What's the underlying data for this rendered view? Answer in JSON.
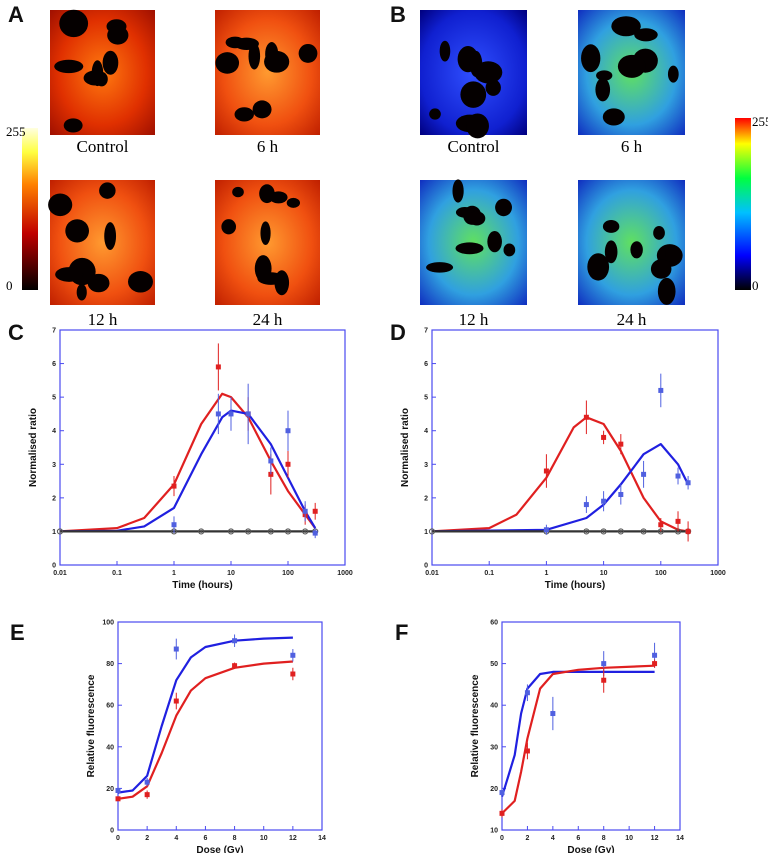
{
  "panels": [
    {
      "label": "A",
      "images": [
        "Control",
        "6 h",
        "12 h",
        "24 h"
      ],
      "colorbar": [
        "255",
        "0"
      ]
    },
    {
      "label": "B",
      "images": [
        "Control",
        "6 h",
        "12 h",
        "24 h"
      ],
      "colorbar": [
        "255",
        "0"
      ]
    }
  ],
  "chart_data": [
    {
      "type": "scatter",
      "label": "C",
      "xlabel": "Time (hours)",
      "ylabel": "Normalised ratio",
      "xscale": "log",
      "xlim": [
        0.01,
        1000
      ],
      "xticks": [
        0.01,
        0.1,
        1,
        10,
        100,
        1000
      ],
      "ylim": [
        0,
        7
      ],
      "yticks": [
        0,
        1,
        2,
        3,
        4,
        5,
        6,
        7
      ],
      "series": [
        {
          "mode": "line",
          "color": "#e02020",
          "x": [
            0.01,
            0.1,
            0.3,
            1,
            3,
            7,
            10,
            20,
            50,
            100,
            200,
            300
          ],
          "values": [
            1,
            1.1,
            1.4,
            2.4,
            4.2,
            5.1,
            5.0,
            4.4,
            3.1,
            2.2,
            1.5,
            1.1
          ]
        },
        {
          "mode": "line",
          "color": "#2020e0",
          "x": [
            0.01,
            0.1,
            0.3,
            1,
            3,
            7,
            10,
            20,
            50,
            100,
            200,
            300
          ],
          "values": [
            1,
            1.02,
            1.15,
            1.7,
            3.3,
            4.4,
            4.6,
            4.5,
            3.6,
            2.6,
            1.6,
            1.1
          ]
        },
        {
          "mode": "line",
          "color": "#333333",
          "x": [
            0.01,
            300
          ],
          "values": [
            1,
            1
          ]
        },
        {
          "mode": "markers",
          "marker": "circle",
          "color": "#555555",
          "x": [
            0.01,
            1,
            3,
            10,
            20,
            50,
            100,
            200,
            300
          ],
          "values": [
            1,
            1,
            1,
            1,
            1,
            1,
            1,
            1,
            1
          ],
          "errors": [
            0.05,
            0.05,
            0.05,
            0.05,
            0.05,
            0.05,
            0.05,
            0.05,
            0.05
          ]
        },
        {
          "mode": "markers",
          "marker": "square",
          "color": "#e02020",
          "x": [
            1,
            6,
            20,
            50,
            100,
            200,
            300
          ],
          "values": [
            2.35,
            5.9,
            4.5,
            2.7,
            3.0,
            1.5,
            1.6
          ],
          "errors": [
            0.3,
            0.7,
            0.5,
            0.6,
            0.4,
            0.3,
            0.25
          ]
        },
        {
          "mode": "markers",
          "marker": "square",
          "color": "#5060e0",
          "x": [
            1,
            6,
            10,
            20,
            50,
            100,
            200,
            300
          ],
          "values": [
            1.2,
            4.5,
            4.5,
            4.5,
            3.1,
            4.0,
            1.6,
            0.95
          ],
          "errors": [
            0.25,
            0.6,
            0.5,
            0.9,
            0.4,
            0.6,
            0.3,
            0.15
          ]
        }
      ]
    },
    {
      "type": "scatter",
      "label": "D",
      "xlabel": "Time (hours)",
      "ylabel": "Normalised ratio",
      "xscale": "log",
      "xlim": [
        0.01,
        1000
      ],
      "xticks": [
        0.01,
        0.1,
        1,
        10,
        100,
        1000
      ],
      "ylim": [
        0,
        7
      ],
      "yticks": [
        0,
        1,
        2,
        3,
        4,
        5,
        6,
        7
      ],
      "series": [
        {
          "mode": "line",
          "color": "#e02020",
          "x": [
            0.01,
            0.1,
            0.3,
            1,
            3,
            5,
            10,
            20,
            50,
            100,
            200,
            300
          ],
          "values": [
            1,
            1.1,
            1.5,
            2.6,
            4.1,
            4.4,
            4.2,
            3.4,
            2.0,
            1.3,
            1.05,
            1.0
          ]
        },
        {
          "mode": "line",
          "color": "#2020e0",
          "x": [
            0.01,
            1,
            5,
            10,
            20,
            50,
            100,
            200,
            300
          ],
          "values": [
            1,
            1.05,
            1.4,
            1.8,
            2.4,
            3.3,
            3.6,
            3.0,
            2.4
          ]
        },
        {
          "mode": "line",
          "color": "#333333",
          "x": [
            0.01,
            300
          ],
          "values": [
            1,
            1
          ]
        },
        {
          "mode": "markers",
          "marker": "circle",
          "color": "#555555",
          "x": [
            0.01,
            1,
            5,
            10,
            20,
            50,
            100,
            200,
            300
          ],
          "values": [
            1,
            1,
            1,
            1,
            1,
            1,
            1,
            1,
            1
          ],
          "errors": [
            0.05,
            0.05,
            0.05,
            0.05,
            0.05,
            0.05,
            0.05,
            0.05,
            0.05
          ]
        },
        {
          "mode": "markers",
          "marker": "square",
          "color": "#e02020",
          "x": [
            1,
            5,
            10,
            20,
            100,
            200,
            300
          ],
          "values": [
            2.8,
            4.4,
            3.8,
            3.6,
            1.2,
            1.3,
            1.0
          ],
          "errors": [
            0.5,
            0.5,
            0.2,
            0.3,
            0.2,
            0.3,
            0.3
          ]
        },
        {
          "mode": "markers",
          "marker": "square",
          "color": "#5060e0",
          "x": [
            1,
            5,
            10,
            20,
            50,
            100,
            200,
            300
          ],
          "values": [
            1.05,
            1.8,
            1.9,
            2.1,
            2.7,
            5.2,
            2.65,
            2.45
          ],
          "errors": [
            0.15,
            0.25,
            0.3,
            0.3,
            0.4,
            0.5,
            0.25,
            0.2
          ]
        }
      ]
    },
    {
      "type": "scatter",
      "label": "E",
      "xlabel": "Dose (Gy)",
      "ylabel": "Relative fluorescence",
      "xscale": "linear",
      "xlim": [
        0,
        14
      ],
      "xticks": [
        0,
        2,
        4,
        6,
        8,
        10,
        12,
        14
      ],
      "ylim": [
        0,
        100
      ],
      "yticks": [
        0,
        20,
        40,
        60,
        80,
        100
      ],
      "series": [
        {
          "mode": "line",
          "color": "#2020e0",
          "x": [
            0,
            1,
            2,
            3,
            4,
            5,
            6,
            8,
            10,
            12
          ],
          "values": [
            18,
            19,
            26,
            50,
            72,
            83,
            88,
            91,
            92,
            92.5
          ]
        },
        {
          "mode": "line",
          "color": "#e02020",
          "x": [
            0,
            1,
            2,
            3,
            4,
            5,
            6,
            8,
            10,
            12
          ],
          "values": [
            15,
            16,
            21,
            37,
            55,
            67,
            73,
            78,
            80,
            81
          ]
        },
        {
          "mode": "markers",
          "marker": "square",
          "color": "#5060e0",
          "x": [
            0,
            2,
            4,
            8,
            12
          ],
          "values": [
            19,
            23,
            87,
            91,
            84
          ],
          "errors": [
            1,
            2,
            5,
            3,
            3
          ]
        },
        {
          "mode": "markers",
          "marker": "square",
          "color": "#e02020",
          "x": [
            0,
            2,
            4,
            8,
            12
          ],
          "values": [
            15,
            17,
            62,
            79,
            75
          ],
          "errors": [
            1,
            2,
            4,
            1.5,
            3
          ]
        }
      ]
    },
    {
      "type": "scatter",
      "label": "F",
      "xlabel": "Dose (Gy)",
      "ylabel": "Relative fluorescence",
      "xscale": "linear",
      "xlim": [
        0,
        14
      ],
      "xticks": [
        0,
        2,
        4,
        6,
        8,
        10,
        12,
        14
      ],
      "ylim": [
        10,
        60
      ],
      "yticks": [
        10,
        20,
        30,
        40,
        50,
        60
      ],
      "series": [
        {
          "mode": "line",
          "color": "#2020e0",
          "x": [
            0,
            1,
            1.5,
            2,
            3,
            4,
            6,
            8,
            12
          ],
          "values": [
            18,
            28,
            38,
            44,
            47.5,
            48,
            48,
            48,
            48
          ]
        },
        {
          "mode": "line",
          "color": "#e02020",
          "x": [
            0,
            1,
            1.5,
            2,
            3,
            4,
            6,
            8,
            12
          ],
          "values": [
            14,
            17,
            24,
            32,
            44,
            47.5,
            48.5,
            49,
            49.5
          ]
        },
        {
          "mode": "markers",
          "marker": "square",
          "color": "#5060e0",
          "x": [
            0,
            2,
            4,
            8,
            12
          ],
          "values": [
            19,
            43,
            38,
            50,
            52
          ],
          "errors": [
            1,
            2,
            4,
            3,
            3
          ]
        },
        {
          "mode": "markers",
          "marker": "square",
          "color": "#e02020",
          "x": [
            0,
            2,
            8,
            12
          ],
          "values": [
            14,
            29,
            46,
            50
          ],
          "errors": [
            1,
            2,
            3,
            1
          ]
        }
      ]
    }
  ]
}
